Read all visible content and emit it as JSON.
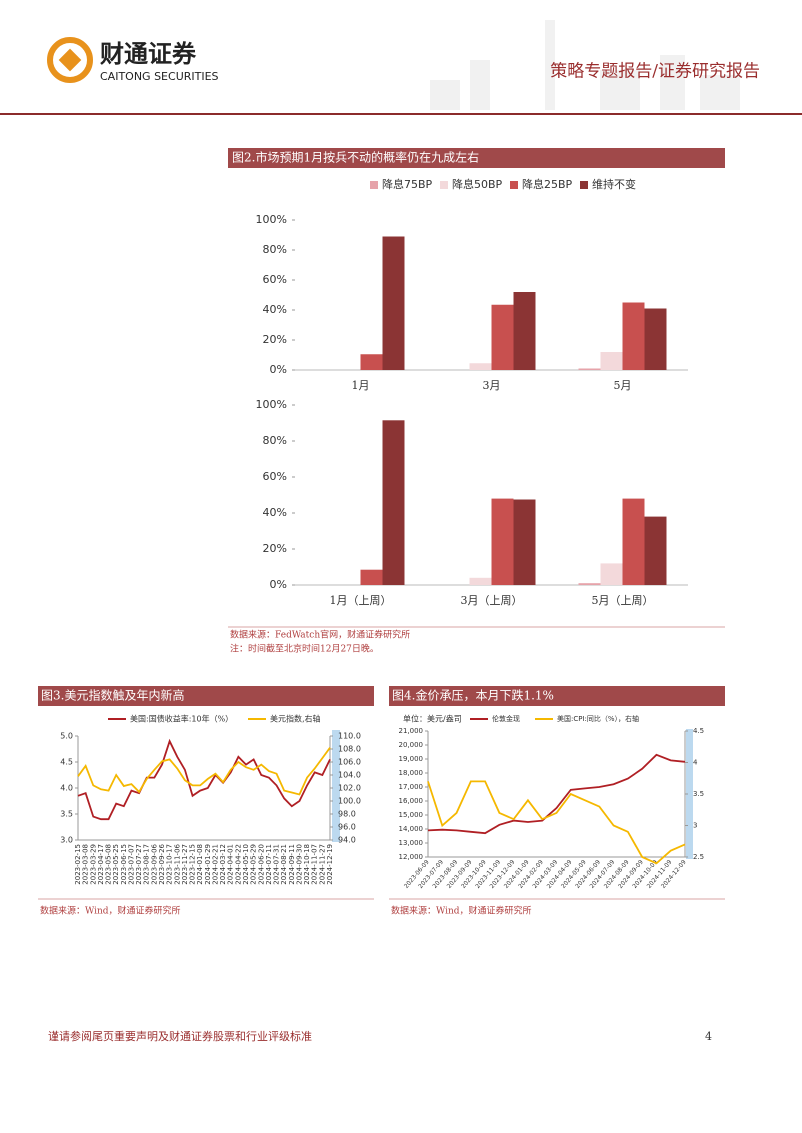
{
  "header": {
    "logo_cn": "财通证券",
    "logo_en": "CAITONG SECURITIES",
    "report_type": "策略专题报告/证券研究报告"
  },
  "chart_data": [
    {
      "type": "bar",
      "title": "图2.市场预期1月按兵不动的概率仍在九成左右",
      "categories": [
        "1月",
        "3月",
        "5月"
      ],
      "series": [
        {
          "name": "降息75BP",
          "color": "#e6a3aa",
          "values": [
            0,
            0,
            1
          ]
        },
        {
          "name": "降息50BP",
          "color": "#f3d9db",
          "values": [
            0,
            4.5,
            12
          ]
        },
        {
          "name": "降息25BP",
          "color": "#c8504f",
          "values": [
            10.5,
            43.5,
            45
          ]
        },
        {
          "name": "维持不变",
          "color": "#8b3434",
          "values": [
            89,
            52,
            41
          ]
        }
      ],
      "ylim": [
        0,
        100
      ],
      "yticks": [
        {
          "value": 0,
          "label": "0%"
        },
        {
          "value": 20,
          "label": "20%"
        },
        {
          "value": 40,
          "label": "40%"
        },
        {
          "value": 60,
          "label": "60%"
        },
        {
          "value": 80,
          "label": "80%"
        },
        {
          "value": 100,
          "label": "100%"
        }
      ]
    },
    {
      "type": "bar",
      "categories": [
        "1月（上周）",
        "3月（上周）",
        "5月（上周）"
      ],
      "series": [
        {
          "color": "#e6a3aa",
          "values": [
            0,
            0,
            1
          ]
        },
        {
          "color": "#f3d9db",
          "values": [
            0,
            4,
            12
          ]
        },
        {
          "color": "#c8504f",
          "values": [
            8.5,
            48,
            48
          ]
        },
        {
          "color": "#8b3434",
          "values": [
            91.5,
            47.5,
            38
          ]
        }
      ],
      "ylim": [
        0,
        100
      ],
      "yticks": [
        {
          "value": 0,
          "label": "0%"
        },
        {
          "value": 20,
          "label": "20%"
        },
        {
          "value": 40,
          "label": "40%"
        },
        {
          "value": 60,
          "label": "60%"
        },
        {
          "value": 80,
          "label": "80%"
        },
        {
          "value": 100,
          "label": "100%"
        }
      ]
    },
    {
      "type": "line",
      "title": "图3.美元指数触及年内新高",
      "categories": [
        "2023-02-15",
        "2023-03-08",
        "2023-03-29",
        "2023-04-17",
        "2023-05-08",
        "2023-05-25",
        "2023-06-15",
        "2023-07-07",
        "2023-07-27",
        "2023-08-17",
        "2023-09-06",
        "2023-09-26",
        "2023-10-17",
        "2023-11-06",
        "2023-11-27",
        "2023-12-15",
        "2024-01-08",
        "2024-01-29",
        "2024-02-21",
        "2024-03-12",
        "2024-04-01",
        "2024-04-22",
        "2024-05-10",
        "2024-05-29",
        "2024-06-20",
        "2024-07-11",
        "2024-07-31",
        "2024-08-21",
        "2024-09-11",
        "2024-09-30",
        "2024-10-18",
        "2024-11-07",
        "2024-11-27",
        "2024-12-19"
      ],
      "series": [
        {
          "name": "美国:国债收益率:10年（%）",
          "color": "#b01f24",
          "values": [
            3.85,
            3.9,
            3.45,
            3.4,
            3.4,
            3.7,
            3.65,
            3.95,
            3.9,
            4.2,
            4.2,
            4.45,
            4.9,
            4.6,
            4.35,
            3.85,
            3.95,
            4.0,
            4.25,
            4.1,
            4.3,
            4.6,
            4.45,
            4.55,
            4.25,
            4.2,
            4.05,
            3.8,
            3.65,
            3.75,
            4.05,
            4.3,
            4.25,
            4.55
          ]
        },
        {
          "name": "美元指数,右轴",
          "color": "#f5b800",
          "axis": "y2",
          "values": [
            103.8,
            105.4,
            102.4,
            101.8,
            101.6,
            104.0,
            102.3,
            102.6,
            101.4,
            103.4,
            104.8,
            106.1,
            106.4,
            105.0,
            103.2,
            102.4,
            102.4,
            103.4,
            104.2,
            102.9,
            104.8,
            106.0,
            105.2,
            104.8,
            105.6,
            104.6,
            104.2,
            101.6,
            101.3,
            101.0,
            103.6,
            105.0,
            106.6,
            108.2
          ]
        }
      ],
      "ylim": [
        3,
        5
      ],
      "yticks": [
        {
          "value": 3,
          "label": "3.0"
        },
        3.5,
        {
          "value": 4,
          "label": "4.0"
        },
        4.5,
        {
          "value": 5,
          "label": "5.0"
        }
      ],
      "y2lim": [
        94,
        110
      ],
      "y2ticks": [
        {
          "value": 94,
          "label": "94.0"
        },
        {
          "value": 96,
          "label": "96.0"
        },
        {
          "value": 98,
          "label": "98.0"
        },
        {
          "value": 100,
          "label": "100.0"
        },
        {
          "value": 102,
          "label": "102.0"
        },
        {
          "value": 104,
          "label": "104.0"
        },
        {
          "value": 106,
          "label": "106.0"
        },
        {
          "value": 108,
          "label": "108.0"
        },
        {
          "value": 110,
          "label": "110.0"
        }
      ]
    },
    {
      "type": "line",
      "title": "图4.金价承压，本月下跌1.1%",
      "unit": "单位：美元/盎司",
      "categories": [
        "2023-06-09",
        "2023-07-09",
        "2023-08-09",
        "2023-09-09",
        "2023-10-09",
        "2023-11-09",
        "2023-12-09",
        "2024-01-09",
        "2024-02-09",
        "2024-03-09",
        "2024-04-09",
        "2024-05-09",
        "2024-06-09",
        "2024-07-09",
        "2024-08-09",
        "2024-09-09",
        "2024-10-09",
        "2024-11-09",
        "2024-12-09"
      ],
      "series": [
        {
          "name": "伦敦金现",
          "color": "#b01f24",
          "values": [
            13900,
            13950,
            13900,
            13800,
            13700,
            14300,
            14600,
            14500,
            14600,
            15500,
            16800,
            16900,
            17000,
            17200,
            17600,
            18300,
            19300,
            18900,
            18800
          ]
        },
        {
          "name": "美国:CPI:同比（%），右轴",
          "color": "#f5b800",
          "axis": "y2",
          "values": [
            3.7,
            3.0,
            3.2,
            3.7,
            3.7,
            3.2,
            3.1,
            3.4,
            3.1,
            3.2,
            3.5,
            3.4,
            3.3,
            3.0,
            2.9,
            2.5,
            2.4,
            2.6,
            2.7
          ]
        }
      ],
      "ylim": [
        12000,
        21000
      ],
      "yticks": [
        {
          "value": 12000,
          "label": "12,000"
        },
        {
          "value": 13000,
          "label": "13,000"
        },
        {
          "value": 14000,
          "label": "14,000"
        },
        {
          "value": 15000,
          "label": "15,000"
        },
        {
          "value": 16000,
          "label": "16,000"
        },
        {
          "value": 17000,
          "label": "17,000"
        },
        {
          "value": 18000,
          "label": "18,000"
        },
        {
          "value": 19000,
          "label": "19,000"
        },
        {
          "value": 20000,
          "label": "20,000"
        },
        {
          "value": 21000,
          "label": "21,000"
        }
      ],
      "y2lim": [
        2.5,
        4.5
      ],
      "y2ticks": [
        2.5,
        3,
        3.5,
        4,
        4.5
      ]
    }
  ],
  "notes": {
    "fig2_source": "数据来源：FedWatch官网，财通证券研究所",
    "fig2_note": "注：时间截至北京时间12月27日晚。",
    "fig3_source": "数据来源：Wind，财通证券研究所",
    "fig4_source": "数据来源：Wind，财通证券研究所"
  },
  "footer": {
    "disclaimer": "谨请参阅尾页重要声明及财通证券股票和行业评级标准",
    "page": "4"
  }
}
